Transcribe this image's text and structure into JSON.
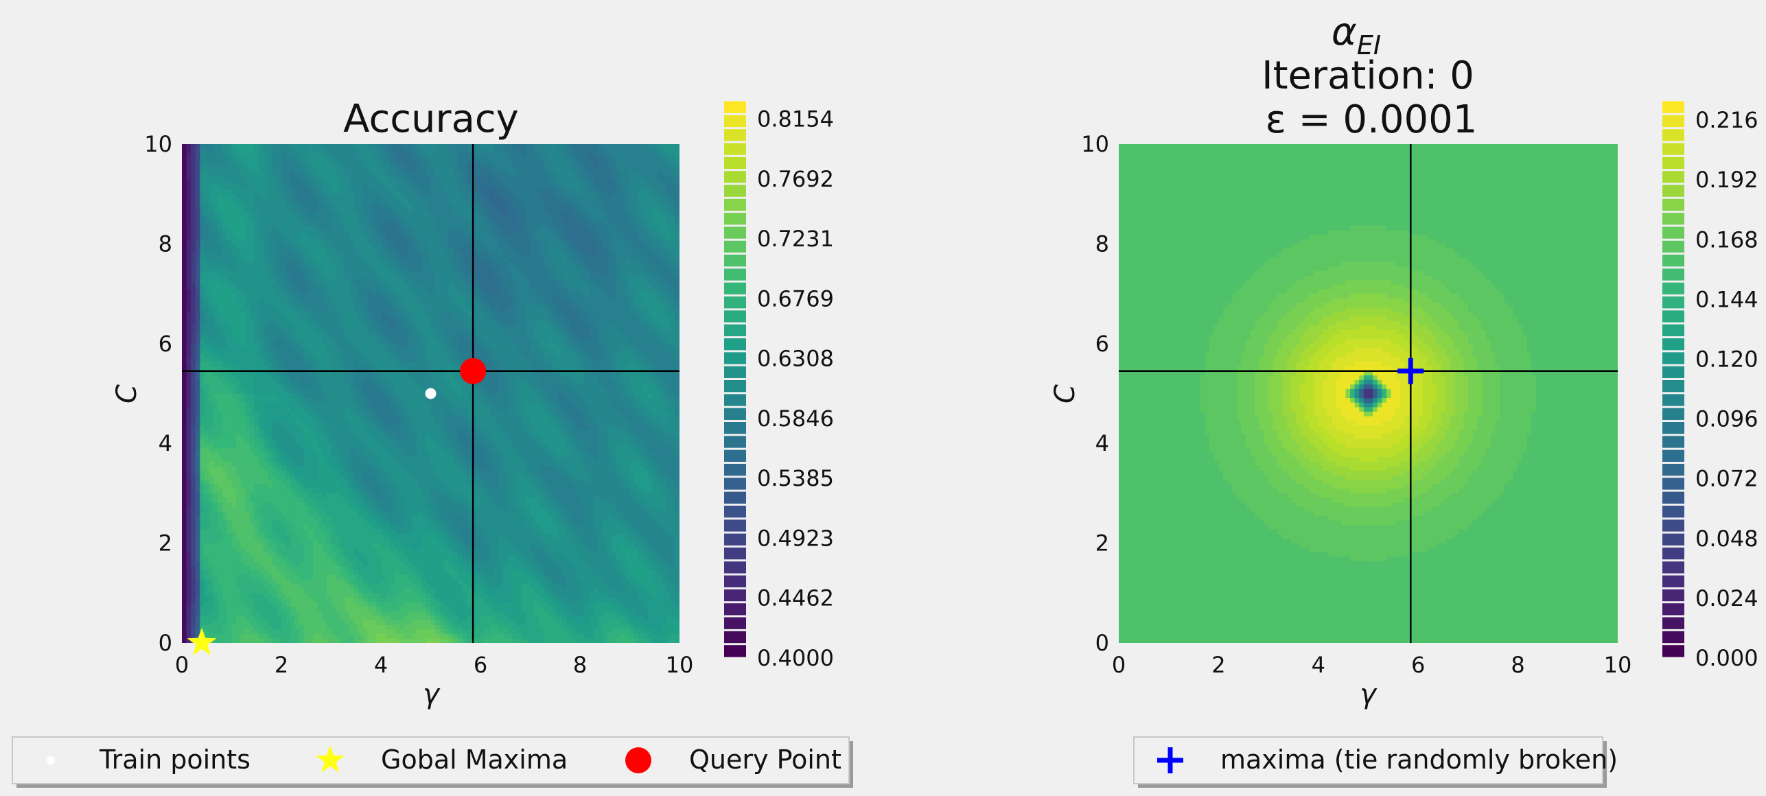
{
  "chart_data": [
    {
      "type": "heatmap",
      "title": "Accuracy",
      "xlabel": "γ",
      "ylabel": "C",
      "xlim": [
        0,
        10
      ],
      "ylim": [
        0,
        10
      ],
      "x_ticks": [
        "0",
        "2",
        "4",
        "6",
        "8",
        "10"
      ],
      "y_ticks": [
        "0",
        "2",
        "4",
        "6",
        "8",
        "10"
      ],
      "colorbar": {
        "min": 0.4,
        "max": 0.83,
        "levels": 40,
        "colormap": "viridis",
        "tick_values": [
          0.4,
          0.4462,
          0.4923,
          0.5385,
          0.5846,
          0.6308,
          0.6769,
          0.7231,
          0.7692,
          0.8154
        ],
        "tick_labels": [
          "0.4000",
          "0.4462",
          "0.4923",
          "0.5385",
          "0.5846",
          "0.6308",
          "0.6769",
          "0.7231",
          "0.7692",
          "0.8154"
        ]
      },
      "train_points": [
        {
          "x": 5.0,
          "y": 5.0
        }
      ],
      "global_maxima": {
        "x": 0.4,
        "y": 0.0
      },
      "query_point": {
        "x": 5.85,
        "y": 5.45
      },
      "crosshair": {
        "x": 5.85,
        "y": 5.45
      },
      "legend": {
        "position": "bottom",
        "items": [
          {
            "label": "Train points",
            "marker": "dot",
            "color": "#ffffff"
          },
          {
            "label": "Gobal Maxima",
            "marker": "star",
            "color": "#ffff14"
          },
          {
            "label": "Query Point",
            "marker": "circle",
            "color": "#ff0000"
          }
        ]
      },
      "grid": false
    },
    {
      "type": "heatmap",
      "title_lines": [
        "α",
        "Iteration: 0",
        "ε = 0.0001"
      ],
      "title_subscript": "EI",
      "xlabel": "γ",
      "ylabel": "C",
      "xlim": [
        0,
        10
      ],
      "ylim": [
        0,
        10
      ],
      "x_ticks": [
        "0",
        "2",
        "4",
        "6",
        "8",
        "10"
      ],
      "y_ticks": [
        "0",
        "2",
        "4",
        "6",
        "8",
        "10"
      ],
      "colorbar": {
        "min": 0.0,
        "max": 0.224,
        "levels": 40,
        "colormap": "viridis",
        "tick_values": [
          0.0,
          0.024,
          0.048,
          0.072,
          0.096,
          0.12,
          0.144,
          0.168,
          0.192,
          0.216
        ],
        "tick_labels": [
          "0.000",
          "0.024",
          "0.048",
          "0.072",
          "0.096",
          "0.120",
          "0.144",
          "0.168",
          "0.192",
          "0.216"
        ]
      },
      "acquisition_peak": {
        "x": 5.0,
        "y": 5.0,
        "peak": 0.22,
        "background": 0.16,
        "radius": 3.0
      },
      "maxima": {
        "x": 5.85,
        "y": 5.45
      },
      "crosshair": {
        "x": 5.85,
        "y": 5.45
      },
      "legend": {
        "position": "bottom",
        "items": [
          {
            "label": "maxima (tie randomly broken)",
            "marker": "plus",
            "color": "#0000ff"
          }
        ]
      },
      "grid": false
    }
  ]
}
